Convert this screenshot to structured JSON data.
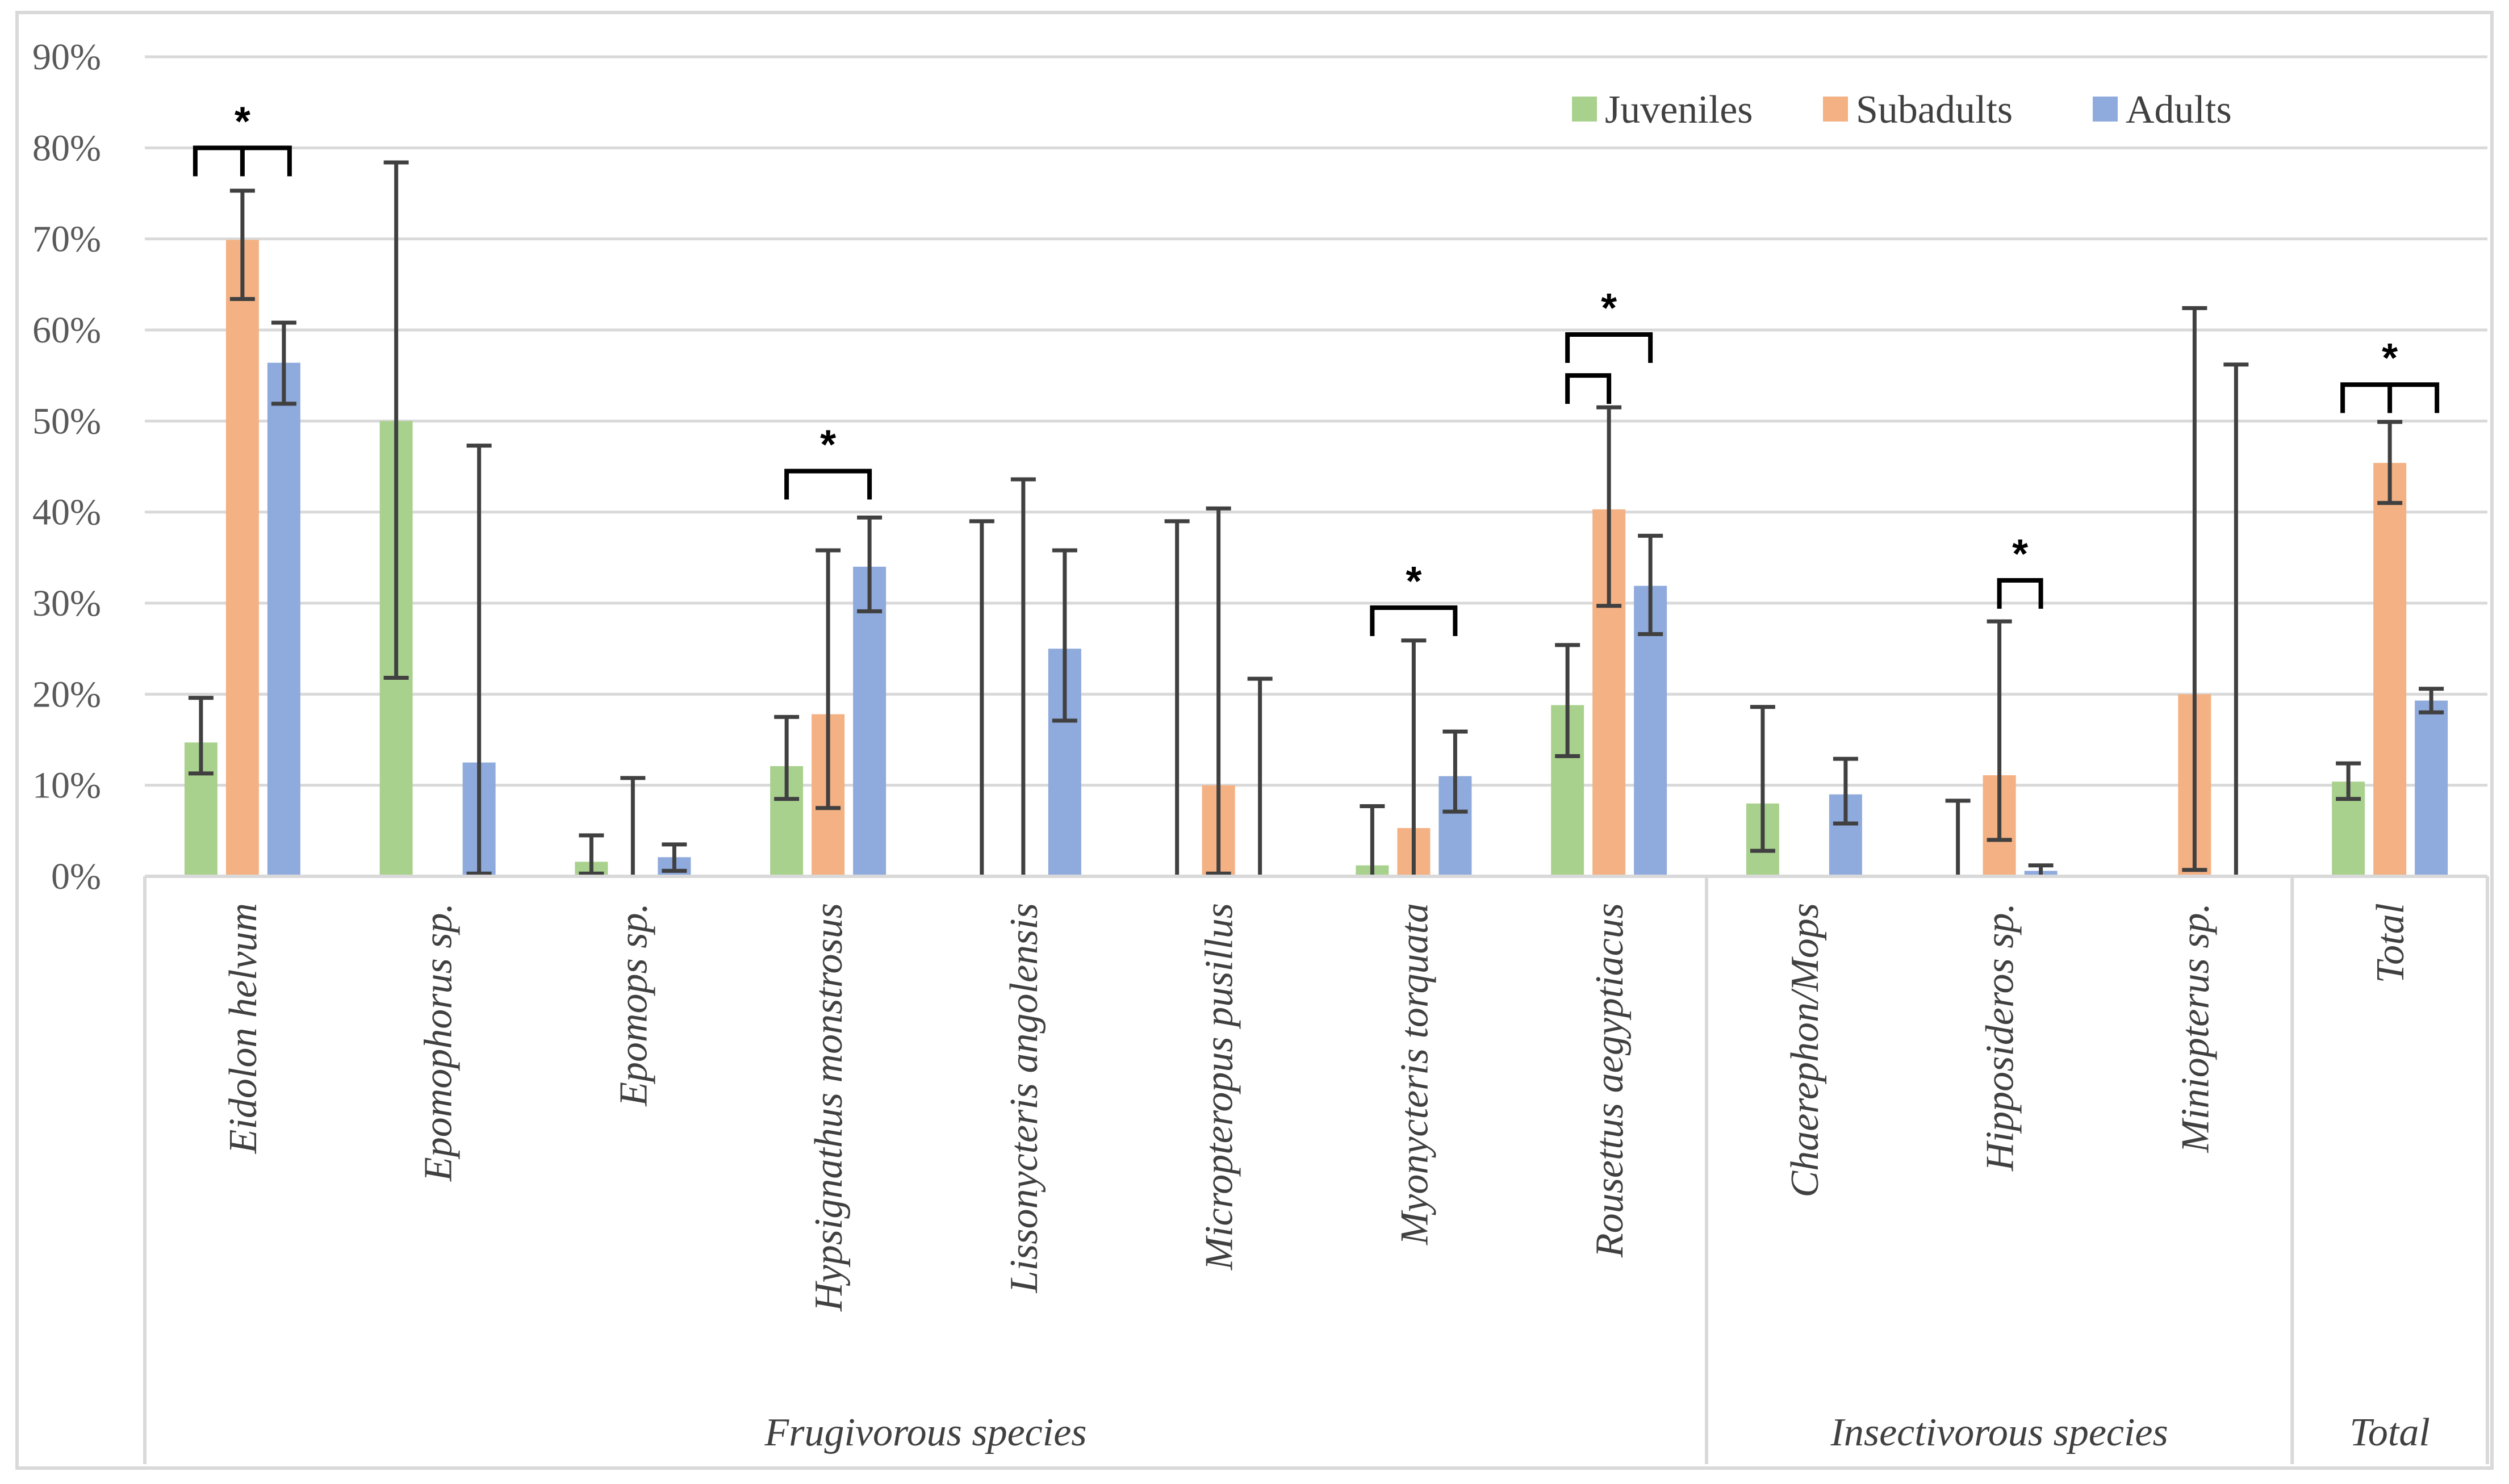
{
  "chart_data": {
    "type": "bar",
    "ylim": [
      0,
      90
    ],
    "ytick_step": 10,
    "ytick_labels": [
      "0%",
      "10%",
      "20%",
      "30%",
      "40%",
      "50%",
      "60%",
      "70%",
      "80%",
      "90%"
    ],
    "grid": true,
    "legend_position": "top-right",
    "colors": {
      "Juveniles": "#a9d18e",
      "Subadults": "#f4b183",
      "Adults": "#8faadc",
      "error": "#404040",
      "grid": "#d9d9d9"
    },
    "categories": [
      "Eidolon helvum",
      "Epomophorus sp.",
      "Epomops sp.",
      "Hypsignathus monstrosus",
      "Lissonycteris angolensis",
      "Micropteropus pusillus",
      "Myonycteris torquata",
      "Rousettus aegyptiacus",
      "Chaerephon/Mops",
      "Hipposideros sp.",
      "Miniopterus sp.",
      "Total"
    ],
    "groups": [
      {
        "label": "Frugivorous species",
        "start": 0,
        "end": 7
      },
      {
        "label": "Insectivorous species",
        "start": 8,
        "end": 10
      },
      {
        "label": "Total",
        "start": 11,
        "end": 11
      }
    ],
    "series": [
      {
        "name": "Juveniles",
        "values": [
          14.7,
          50,
          1.6,
          12.1,
          0,
          0,
          1.2,
          18.8,
          8,
          0,
          0,
          10.4
        ],
        "err_low": [
          11.3,
          21.8,
          0.3,
          8.5,
          0,
          0,
          0,
          13.2,
          2.8,
          0,
          0,
          8.5
        ],
        "err_high": [
          19.6,
          78.4,
          4.5,
          17.5,
          39,
          39,
          7.7,
          25.4,
          18.6,
          8.3,
          0,
          12.4
        ]
      },
      {
        "name": "Subadults",
        "values": [
          69.9,
          0,
          0,
          17.8,
          0,
          10,
          5.3,
          40.3,
          0,
          11.1,
          20,
          45.4
        ],
        "err_low": [
          63.4,
          0,
          0,
          7.5,
          0,
          0.3,
          0.1,
          29.7,
          0,
          4,
          0.7,
          41
        ],
        "err_high": [
          75.3,
          0,
          10.8,
          35.8,
          43.6,
          40.4,
          25.9,
          51.5,
          0,
          28,
          62.4,
          49.9
        ]
      },
      {
        "name": "Adults",
        "values": [
          56.4,
          12.5,
          2.1,
          34,
          25,
          0,
          11,
          31.9,
          9,
          0.6,
          0,
          19.3
        ],
        "err_low": [
          51.9,
          0.3,
          0.6,
          29.1,
          17.1,
          0,
          7.1,
          26.6,
          5.8,
          0,
          0,
          18
        ],
        "err_high": [
          60.8,
          47.3,
          3.5,
          39.4,
          35.8,
          21.7,
          15.9,
          37.4,
          12.9,
          1.2,
          56.2,
          20.6
        ]
      }
    ],
    "significance": [
      {
        "category": 0,
        "type": "triple",
        "height": 80,
        "label": "*"
      },
      {
        "category": 3,
        "type": "pair",
        "from": 0,
        "to": 2,
        "height": 44.5,
        "label": "*"
      },
      {
        "category": 6,
        "type": "pair",
        "from": 0,
        "to": 2,
        "height": 29.5,
        "label": "*"
      },
      {
        "category": 7,
        "type": "pair",
        "from": 0,
        "to": 2,
        "height": 59.5,
        "label": "*"
      },
      {
        "category": 7,
        "type": "pair",
        "from": 0,
        "to": 1,
        "height": 55,
        "label": ""
      },
      {
        "category": 9,
        "type": "pair",
        "from": 1,
        "to": 2,
        "height": 32.5,
        "label": "*"
      },
      {
        "category": 11,
        "type": "triple",
        "height": 54,
        "label": "*"
      }
    ]
  }
}
